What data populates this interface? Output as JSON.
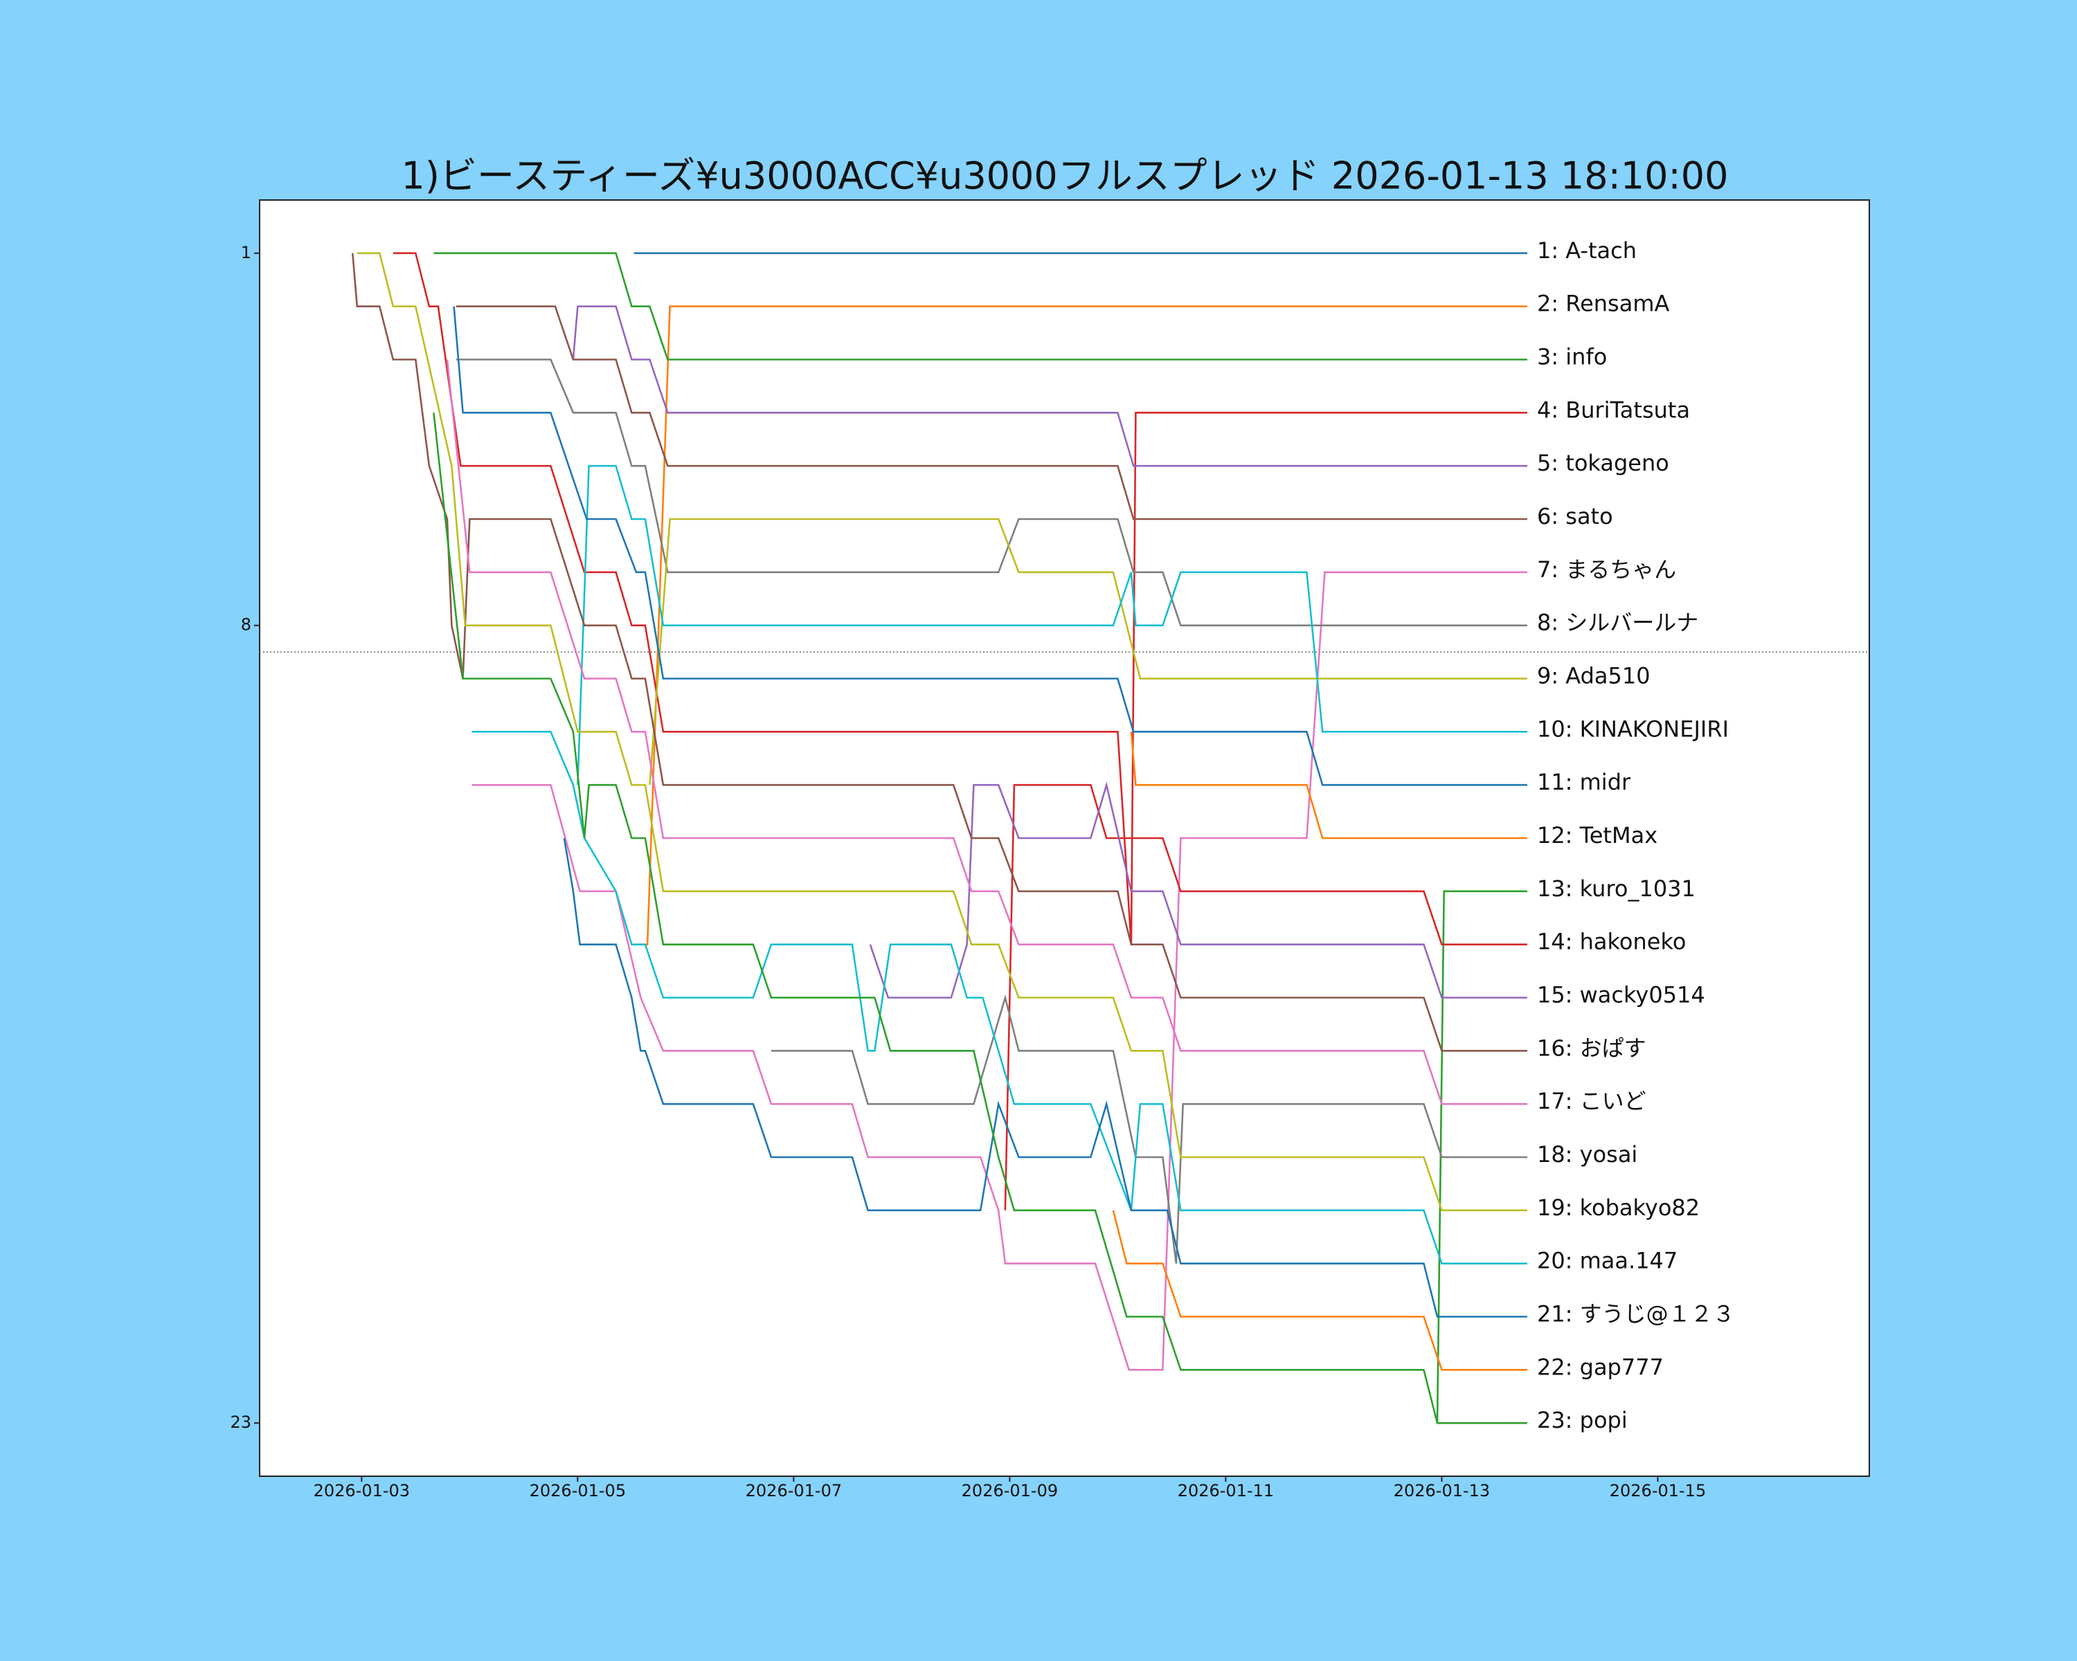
{
  "chart_data": {
    "type": "line",
    "title": "1)ビースティーズ¥u3000ACC¥u3000フルスプレッド 2026-01-13 18:10:00",
    "xlim": [
      "2026-01-02T01:20",
      "2026-01-16T23:00"
    ],
    "xticks": [
      "2026-01-03",
      "2026-01-05",
      "2026-01-07",
      "2026-01-09",
      "2026-01-11",
      "2026-01-13",
      "2026-01-15"
    ],
    "ylim": [
      24,
      0
    ],
    "yticks": [
      1,
      8,
      23
    ],
    "reference_line": 8.5,
    "series": [
      {
        "name": "1: A-tach",
        "color": "#1f77b4",
        "x": [
          "2026-01-05T12:30",
          "2026-01-13T19:00"
        ],
        "values": [
          1,
          1
        ]
      },
      {
        "name": "2: RensamA",
        "color": "#ff7f0e",
        "x": [
          "2026-01-05T14:00",
          "2026-01-05T15:30",
          "2026-01-05T20:30",
          "2026-01-13T19:00"
        ],
        "values": [
          14,
          14,
          2,
          2
        ]
      },
      {
        "name": "3: info",
        "color": "#2ca02c",
        "x": [
          "2026-01-03T16:00",
          "2026-01-05T08:30",
          "2026-01-05T12:00",
          "2026-01-05T16:00",
          "2026-01-05T20:00",
          "2026-01-13T19:00"
        ],
        "values": [
          1,
          1,
          2,
          2,
          3,
          3
        ]
      },
      {
        "name": "4: BuriTatsuta",
        "color": "#d62728",
        "x": [
          "2026-01-03T07:00",
          "2026-01-03T12:00",
          "2026-01-03T15:00",
          "2026-01-03T17:00",
          "2026-01-03T22:00",
          "2026-01-04T18:00",
          "2026-01-05T01:30",
          "2026-01-05T08:30",
          "2026-01-05T12:00",
          "2026-01-05T15:00",
          "2026-01-05T19:00",
          "2026-01-10T00:00",
          "2026-01-10T03:00",
          "2026-01-10T04:00",
          "2026-01-13T19:00"
        ],
        "values": [
          1,
          1,
          2,
          2,
          5,
          5,
          7,
          7,
          8,
          8,
          10,
          10,
          14,
          4,
          4
        ]
      },
      {
        "name": "5: tokageno",
        "color": "#9467bd",
        "x": [
          "2026-01-04T23:00",
          "2026-01-05T00:00",
          "2026-01-05T08:30",
          "2026-01-05T12:00",
          "2026-01-05T16:00",
          "2026-01-05T20:00",
          "2026-01-10T00:00",
          "2026-01-10T03:30",
          "2026-01-13T19:00"
        ],
        "values": [
          3,
          2,
          2,
          3,
          3,
          4,
          4,
          5,
          5
        ]
      },
      {
        "name": "6: sato",
        "color": "#8c564b",
        "x": [
          "2026-01-03T21:00",
          "2026-01-04T19:00",
          "2026-01-04T23:00",
          "2026-01-05T08:30",
          "2026-01-05T12:00",
          "2026-01-05T16:00",
          "2026-01-05T20:00",
          "2026-01-10T00:00",
          "2026-01-10T03:30",
          "2026-01-13T19:00"
        ],
        "values": [
          2,
          2,
          3,
          3,
          4,
          4,
          5,
          5,
          6,
          6
        ]
      },
      {
        "name": "7: まるちゃん",
        "color": "#e377c2",
        "x": [
          "2026-01-04T00:30",
          "2026-01-04T18:00",
          "2026-01-05T00:30",
          "2026-01-05T08:30",
          "2026-01-05T14:00",
          "2026-01-05T19:00",
          "2026-01-06T15:00",
          "2026-01-06T19:00",
          "2026-01-07T13:00",
          "2026-01-07T16:30",
          "2026-01-08T17:30",
          "2026-01-08T21:30",
          "2026-01-08T23:00",
          "2026-01-09T19:00",
          "2026-01-10T02:30",
          "2026-01-10T10:00",
          "2026-01-10T14:00",
          "2026-01-11T18:00",
          "2026-01-11T22:00",
          "2026-01-13T19:00"
        ],
        "values": [
          11,
          11,
          13,
          13,
          15,
          16,
          16,
          17,
          17,
          18,
          18,
          19,
          20,
          20,
          22,
          22,
          12,
          12,
          7,
          7
        ]
      },
      {
        "name": "8: シルバールナ",
        "color": "#7f7f7f",
        "x": [
          "2026-01-03T21:00",
          "2026-01-04T18:00",
          "2026-01-04T23:00",
          "2026-01-05T08:30",
          "2026-01-05T12:00",
          "2026-01-05T15:00",
          "2026-01-05T20:00",
          "2026-01-08T21:30",
          "2026-01-09T02:00",
          "2026-01-10T00:00",
          "2026-01-10T03:30",
          "2026-01-10T10:00",
          "2026-01-10T14:00",
          "2026-01-13T19:00"
        ],
        "values": [
          3,
          3,
          4,
          4,
          5,
          5,
          7,
          7,
          6,
          6,
          7,
          7,
          8,
          8
        ]
      },
      {
        "name": "9: Ada510",
        "color": "#bcbd22",
        "x": [
          "2026-01-05T16:00",
          "2026-01-05T20:30",
          "2026-01-08T21:30",
          "2026-01-09T02:00",
          "2026-01-09T23:00",
          "2026-01-10T05:00",
          "2026-01-13T19:00"
        ],
        "values": [
          11,
          6,
          6,
          7,
          7,
          9,
          9
        ]
      },
      {
        "name": "10: KINAKONEJIRI",
        "color": "#17becf",
        "x": [
          "2026-01-05T00:00",
          "2026-01-05T02:30",
          "2026-01-05T08:30",
          "2026-01-05T12:00",
          "2026-01-05T15:00",
          "2026-01-05T19:00",
          "2026-01-09T23:00",
          "2026-01-10T03:00",
          "2026-01-10T04:00",
          "2026-01-10T10:00",
          "2026-01-10T14:00",
          "2026-01-11T18:00",
          "2026-01-11T21:30",
          "2026-01-13T19:00"
        ],
        "values": [
          11,
          5,
          5,
          6,
          6,
          8,
          8,
          7,
          8,
          8,
          7,
          7,
          10,
          10
        ]
      },
      {
        "name": "11: midr",
        "color": "#1f77b4",
        "x": [
          "2026-01-03T20:30",
          "2026-01-03T22:30",
          "2026-01-04T18:00",
          "2026-01-05T02:00",
          "2026-01-05T08:30",
          "2026-01-05T13:00",
          "2026-01-05T15:00",
          "2026-01-05T19:00",
          "2026-01-10T00:00",
          "2026-01-10T03:30",
          "2026-01-11T18:00",
          "2026-01-11T21:30",
          "2026-01-13T19:00"
        ],
        "values": [
          2,
          4,
          4,
          6,
          6,
          7,
          7,
          9,
          9,
          10,
          10,
          11,
          11
        ]
      },
      {
        "name": "12: TetMax",
        "color": "#ff7f0e",
        "x": [
          "2026-01-10T03:00",
          "2026-01-10T04:00",
          "2026-01-11T18:00",
          "2026-01-11T21:30",
          "2026-01-13T19:00"
        ],
        "values": [
          10,
          11,
          11,
          12,
          12
        ]
      },
      {
        "name": "13: kuro_1031",
        "color": "#2ca02c",
        "x": [
          "2026-01-12T23:00",
          "2026-01-13T00:30",
          "2026-01-13T19:00"
        ],
        "values": [
          23,
          13,
          13
        ]
      },
      {
        "name": "14: hakoneko",
        "color": "#d62728",
        "x": [
          "2026-01-08T23:00",
          "2026-01-09T01:00",
          "2026-01-09T18:00",
          "2026-01-09T21:30",
          "2026-01-10T03:30",
          "2026-01-10T10:00",
          "2026-01-10T14:00",
          "2026-01-12T20:00",
          "2026-01-13T00:00",
          "2026-01-13T19:00"
        ],
        "values": [
          19,
          11,
          11,
          12,
          12,
          12,
          13,
          13,
          14,
          14
        ]
      },
      {
        "name": "15: wacky0514",
        "color": "#9467bd",
        "x": [
          "2026-01-07T17:00",
          "2026-01-07T21:00",
          "2026-01-08T11:00",
          "2026-01-08T14:30",
          "2026-01-08T16:00",
          "2026-01-08T21:30",
          "2026-01-09T02:00",
          "2026-01-09T18:00",
          "2026-01-09T21:30",
          "2026-01-10T03:00",
          "2026-01-10T10:00",
          "2026-01-10T14:00",
          "2026-01-12T20:00",
          "2026-01-13T00:00",
          "2026-01-13T19:00"
        ],
        "values": [
          14,
          15,
          15,
          14,
          11,
          11,
          12,
          12,
          11,
          13,
          13,
          14,
          14,
          15,
          15
        ]
      },
      {
        "name": "16: おぱす",
        "color": "#8c564b",
        "x": [
          "2026-01-02T22:00",
          "2026-01-02T23:00",
          "2026-01-03T04:00",
          "2026-01-03T07:00",
          "2026-01-03T12:00",
          "2026-01-03T15:00",
          "2026-01-03T19:00",
          "2026-01-03T20:00",
          "2026-01-03T22:30",
          "2026-01-04T00:00",
          "2026-01-04T18:00",
          "2026-01-05T01:30",
          "2026-01-05T08:30",
          "2026-01-05T12:00",
          "2026-01-05T15:00",
          "2026-01-05T19:00",
          "2026-01-08T11:30",
          "2026-01-08T15:30",
          "2026-01-08T21:30",
          "2026-01-09T02:00",
          "2026-01-10T00:00",
          "2026-01-10T03:00",
          "2026-01-10T10:00",
          "2026-01-10T14:00",
          "2026-01-12T20:00",
          "2026-01-13T00:00",
          "2026-01-13T19:00"
        ],
        "values": [
          1,
          2,
          2,
          3,
          3,
          5,
          6,
          8,
          9,
          6,
          6,
          8,
          8,
          9,
          9,
          11,
          11,
          12,
          12,
          13,
          13,
          14,
          14,
          15,
          15,
          16,
          16
        ]
      },
      {
        "name": "17: こいど",
        "color": "#e377c2",
        "x": [
          "2026-01-03T19:00",
          "2026-01-04T00:00",
          "2026-01-04T18:00",
          "2026-01-05T01:30",
          "2026-01-05T08:30",
          "2026-01-05T12:00",
          "2026-01-05T15:00",
          "2026-01-05T19:00",
          "2026-01-08T11:30",
          "2026-01-08T15:30",
          "2026-01-08T21:30",
          "2026-01-09T02:00",
          "2026-01-09T23:00",
          "2026-01-10T03:00",
          "2026-01-10T10:00",
          "2026-01-10T14:00",
          "2026-01-12T20:00",
          "2026-01-13T00:00",
          "2026-01-13T19:00"
        ],
        "values": [
          3,
          7,
          7,
          9,
          9,
          10,
          10,
          12,
          12,
          13,
          13,
          14,
          14,
          15,
          15,
          16,
          16,
          17,
          17
        ]
      },
      {
        "name": "18: yosai",
        "color": "#7f7f7f",
        "x": [
          "2026-01-06T19:00",
          "2026-01-07T13:00",
          "2026-01-07T16:30",
          "2026-01-08T16:00",
          "2026-01-08T23:00",
          "2026-01-09T02:00",
          "2026-01-09T23:00",
          "2026-01-10T04:00",
          "2026-01-10T10:00",
          "2026-01-10T13:00",
          "2026-01-10T14:30",
          "2026-01-12T20:00",
          "2026-01-13T00:00",
          "2026-01-13T19:00"
        ],
        "values": [
          16,
          16,
          17,
          17,
          15,
          16,
          16,
          18,
          18,
          20,
          17,
          17,
          18,
          18
        ]
      },
      {
        "name": "19: kobakyo82",
        "color": "#bcbd22",
        "x": [
          "2026-01-02T23:00",
          "2026-01-03T04:00",
          "2026-01-03T07:00",
          "2026-01-03T12:00",
          "2026-01-03T20:00",
          "2026-01-03T23:00",
          "2026-01-04T18:00",
          "2026-01-05T00:00",
          "2026-01-05T08:30",
          "2026-01-05T12:00",
          "2026-01-05T15:00",
          "2026-01-05T19:00",
          "2026-01-08T11:30",
          "2026-01-08T15:30",
          "2026-01-08T21:30",
          "2026-01-09T02:00",
          "2026-01-09T23:00",
          "2026-01-10T03:00",
          "2026-01-10T10:00",
          "2026-01-10T14:00",
          "2026-01-12T20:00",
          "2026-01-13T00:00",
          "2026-01-13T19:00"
        ],
        "values": [
          1,
          1,
          2,
          2,
          5,
          8,
          8,
          10,
          10,
          11,
          11,
          13,
          13,
          14,
          14,
          15,
          15,
          16,
          16,
          18,
          18,
          19,
          19
        ]
      },
      {
        "name": "20: maa.147",
        "color": "#17becf",
        "x": [
          "2026-01-04T00:30",
          "2026-01-04T18:00",
          "2026-01-04T23:00",
          "2026-01-05T01:30",
          "2026-01-05T08:30",
          "2026-01-05T12:00",
          "2026-01-05T15:00",
          "2026-01-05T19:00",
          "2026-01-06T15:00",
          "2026-01-06T19:00",
          "2026-01-07T13:00",
          "2026-01-07T16:30",
          "2026-01-07T18:00",
          "2026-01-07T21:30",
          "2026-01-08T11:00",
          "2026-01-08T14:30",
          "2026-01-08T18:00",
          "2026-01-09T01:00",
          "2026-01-09T18:00",
          "2026-01-10T03:00",
          "2026-01-10T05:00",
          "2026-01-10T10:00",
          "2026-01-10T14:00",
          "2026-01-12T20:00",
          "2026-01-13T00:00",
          "2026-01-13T19:00"
        ],
        "values": [
          10,
          10,
          11,
          12,
          13,
          14,
          14,
          15,
          15,
          14,
          14,
          16,
          16,
          14,
          14,
          15,
          15,
          17,
          17,
          19,
          17,
          17,
          19,
          19,
          20,
          20
        ]
      },
      {
        "name": "21: すうじ@１２３",
        "color": "#1f77b4",
        "x": [
          "2026-01-04T21:00",
          "2026-01-04T23:00",
          "2026-01-05T00:30",
          "2026-01-05T08:30",
          "2026-01-05T12:00",
          "2026-01-05T14:00",
          "2026-01-05T15:00",
          "2026-01-05T19:00",
          "2026-01-06T15:00",
          "2026-01-06T19:00",
          "2026-01-07T13:00",
          "2026-01-07T16:30",
          "2026-01-08T17:30",
          "2026-01-08T21:30",
          "2026-01-09T02:00",
          "2026-01-09T18:00",
          "2026-01-09T21:30",
          "2026-01-10T03:00",
          "2026-01-10T11:00",
          "2026-01-10T14:00",
          "2026-01-12T20:00",
          "2026-01-12T23:00",
          "2026-01-13T19:00"
        ],
        "values": [
          12,
          13,
          14,
          14,
          15,
          16,
          16,
          17,
          17,
          18,
          18,
          19,
          19,
          17,
          18,
          18,
          17,
          19,
          19,
          20,
          20,
          21,
          21
        ]
      },
      {
        "name": "22: gap777",
        "color": "#ff7f0e",
        "x": [
          "2026-01-09T23:00",
          "2026-01-10T02:00",
          "2026-01-10T10:00",
          "2026-01-10T14:00",
          "2026-01-12T20:00",
          "2026-01-13T00:00",
          "2026-01-13T19:00"
        ],
        "values": [
          19,
          20,
          20,
          21,
          21,
          22,
          22
        ]
      },
      {
        "name": "23: popi",
        "color": "#2ca02c",
        "x": [
          "2026-01-03T16:00",
          "2026-01-03T22:30",
          "2026-01-04T18:00",
          "2026-01-04T23:00",
          "2026-01-05T01:30",
          "2026-01-05T02:30",
          "2026-01-05T08:30",
          "2026-01-05T12:00",
          "2026-01-05T15:00",
          "2026-01-05T19:00",
          "2026-01-06T15:00",
          "2026-01-06T19:00",
          "2026-01-07T18:00",
          "2026-01-07T21:30",
          "2026-01-08T16:00",
          "2026-01-08T21:30",
          "2026-01-09T01:00",
          "2026-01-09T19:00",
          "2026-01-10T02:00",
          "2026-01-10T10:00",
          "2026-01-10T14:00",
          "2026-01-12T20:00",
          "2026-01-12T23:00",
          "2026-01-13T19:00"
        ],
        "values": [
          4,
          9,
          9,
          10,
          12,
          11,
          11,
          12,
          12,
          14,
          14,
          15,
          15,
          16,
          16,
          18,
          19,
          19,
          21,
          21,
          22,
          22,
          23,
          23
        ]
      }
    ]
  }
}
